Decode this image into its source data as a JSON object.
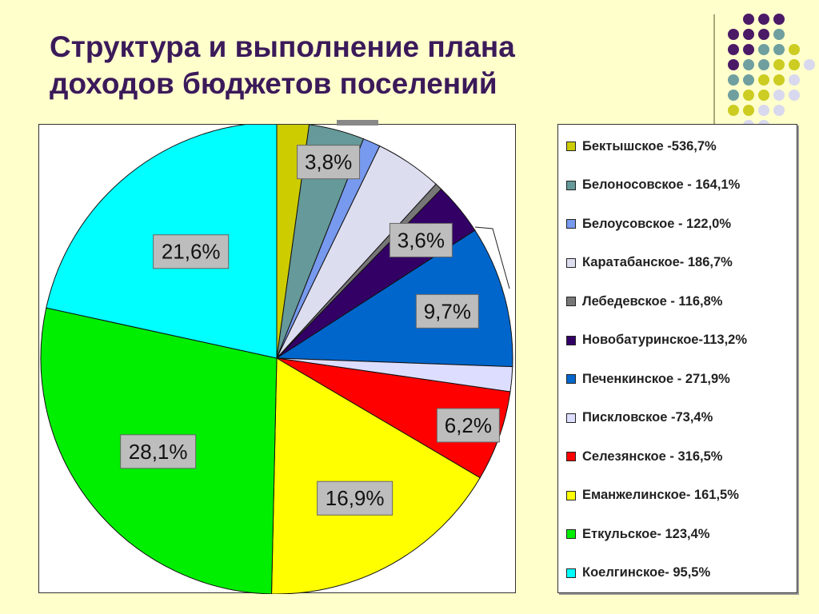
{
  "slide": {
    "title_line1": "Структура и выполнение плана",
    "title_line2": "доходов бюджетов поселений"
  },
  "chart_data": {
    "type": "pie",
    "title": "Структура и выполнение плана доходов бюджетов поселений",
    "legend_position": "right",
    "slices": [
      {
        "legend": "Бектышское -536,7%",
        "value": 2.2,
        "color": "#cccc00",
        "label": ""
      },
      {
        "legend": "Белоносовское - 164,1%",
        "value": 3.8,
        "color": "#669999",
        "label": "3,8%"
      },
      {
        "legend": "Белоусовское - 122,0%",
        "value": 1.2,
        "color": "#7799ee",
        "label": ""
      },
      {
        "legend": "Каратабанское- 186,7%",
        "value": 4.6,
        "color": "#ddddf0",
        "label": ""
      },
      {
        "legend": "Лебедевское - 116,8%",
        "value": 0.5,
        "color": "#777777",
        "label": ""
      },
      {
        "legend": "Новобатуринское-113,2%",
        "value": 3.6,
        "color": "#330066",
        "label": "3,6%"
      },
      {
        "legend": "Печенкинское - 271,9%",
        "value": 9.7,
        "color": "#0066cc",
        "label": "9,7%"
      },
      {
        "legend": "Писклoвское -73,4%",
        "value": 1.7,
        "color": "#ddddff",
        "label": ""
      },
      {
        "legend": "Селезянское - 316,5%",
        "value": 6.2,
        "color": "#ff0000",
        "label": "6,2%"
      },
      {
        "legend": "Еманжелинское- 161,5%",
        "value": 16.9,
        "color": "#ffff00",
        "label": "16,9%"
      },
      {
        "legend": "Еткульское- 123,4%",
        "value": 28.1,
        "color": "#00ee00",
        "label": "28,1%"
      },
      {
        "legend": "Коелгинское- 95,5%",
        "value": 21.6,
        "color": "#00ffff",
        "label": "21,6%"
      }
    ]
  }
}
